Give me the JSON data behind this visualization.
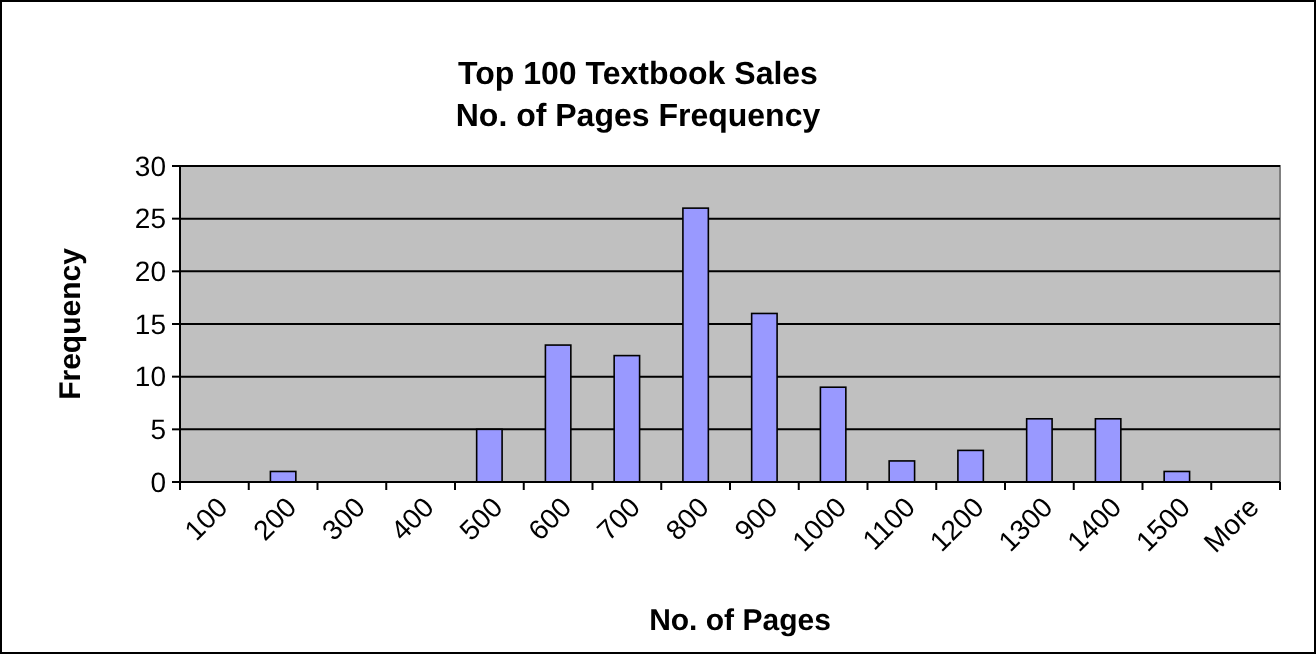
{
  "chart_data": {
    "type": "bar",
    "title": "Top 100 Textbook Sales",
    "subtitle": "No. of Pages Frequency",
    "xlabel": "No. of Pages",
    "ylabel": "Frequency",
    "categories": [
      "100",
      "200",
      "300",
      "400",
      "500",
      "600",
      "700",
      "800",
      "900",
      "1000",
      "1100",
      "1200",
      "1300",
      "1400",
      "1500",
      "More"
    ],
    "values": [
      0,
      1,
      0,
      0,
      5,
      13,
      12,
      26,
      16,
      9,
      2,
      3,
      6,
      6,
      1,
      0
    ],
    "color": "#9999ff",
    "ylim": [
      0,
      30
    ],
    "yticks": [
      0,
      5,
      10,
      15,
      20,
      25,
      30
    ],
    "grid": "y"
  }
}
